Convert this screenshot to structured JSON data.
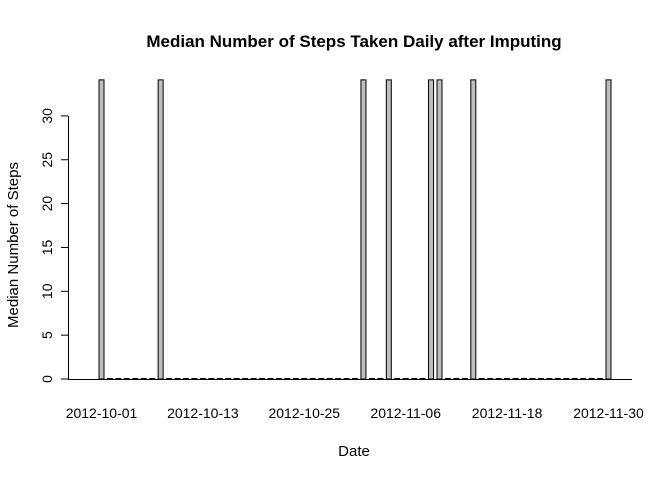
{
  "chart_data": {
    "type": "bar",
    "title": "Median Number of Steps Taken Daily after Imputing",
    "xlabel": "Date",
    "ylabel": "Median Number of Steps",
    "x_tick_labels": [
      "2012-10-01",
      "2012-10-13",
      "2012-10-25",
      "2012-11-06",
      "2012-11-18",
      "2012-11-30"
    ],
    "y_ticks": [
      0,
      5,
      10,
      15,
      20,
      25,
      30
    ],
    "ylim": [
      0,
      34.11
    ],
    "dates": [
      "2012-10-01",
      "2012-10-02",
      "2012-10-03",
      "2012-10-04",
      "2012-10-05",
      "2012-10-06",
      "2012-10-07",
      "2012-10-08",
      "2012-10-09",
      "2012-10-10",
      "2012-10-11",
      "2012-10-12",
      "2012-10-13",
      "2012-10-14",
      "2012-10-15",
      "2012-10-16",
      "2012-10-17",
      "2012-10-18",
      "2012-10-19",
      "2012-10-20",
      "2012-10-21",
      "2012-10-22",
      "2012-10-23",
      "2012-10-24",
      "2012-10-25",
      "2012-10-26",
      "2012-10-27",
      "2012-10-28",
      "2012-10-29",
      "2012-10-30",
      "2012-10-31",
      "2012-11-01",
      "2012-11-02",
      "2012-11-03",
      "2012-11-04",
      "2012-11-05",
      "2012-11-06",
      "2012-11-07",
      "2012-11-08",
      "2012-11-09",
      "2012-11-10",
      "2012-11-11",
      "2012-11-12",
      "2012-11-13",
      "2012-11-14",
      "2012-11-15",
      "2012-11-16",
      "2012-11-17",
      "2012-11-18",
      "2012-11-19",
      "2012-11-20",
      "2012-11-21",
      "2012-11-22",
      "2012-11-23",
      "2012-11-24",
      "2012-11-25",
      "2012-11-26",
      "2012-11-27",
      "2012-11-28",
      "2012-11-29",
      "2012-11-30"
    ],
    "values": [
      34.11,
      0,
      0,
      0,
      0,
      0,
      0,
      34.11,
      0,
      0,
      0,
      0,
      0,
      0,
      0,
      0,
      0,
      0,
      0,
      0,
      0,
      0,
      0,
      0,
      0,
      0,
      0,
      0,
      0,
      0,
      0,
      34.11,
      0,
      0,
      34.11,
      0,
      0,
      0,
      0,
      34.11,
      34.11,
      0,
      0,
      0,
      34.11,
      0,
      0,
      0,
      0,
      0,
      0,
      0,
      0,
      0,
      0,
      0,
      0,
      0,
      0,
      0,
      34.11
    ],
    "colors": {
      "bar_fill": "#bebebe",
      "bar_stroke": "#000000"
    },
    "grid": false,
    "legend": "none"
  }
}
